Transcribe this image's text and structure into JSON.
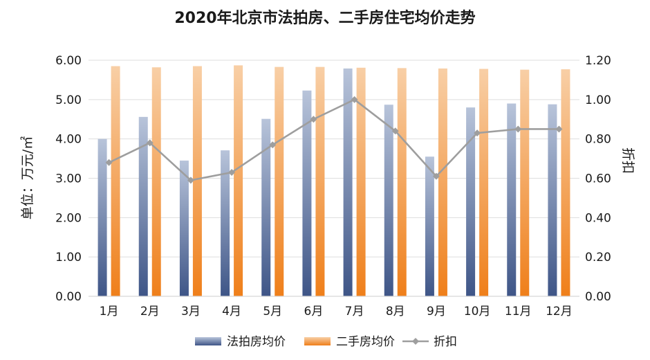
{
  "chart_data": {
    "type": "bar",
    "title": "2020年北京市法拍房、二手房住宅均价走势",
    "categories": [
      "1月",
      "2月",
      "3月",
      "4月",
      "5月",
      "6月",
      "7月",
      "8月",
      "9月",
      "10月",
      "11月",
      "12月"
    ],
    "series": [
      {
        "name": "法拍房均价",
        "type": "bar",
        "axis": "left",
        "color_top": "#b8c4da",
        "color_bottom": "#3e5587",
        "values": [
          4.0,
          4.56,
          3.45,
          3.71,
          4.51,
          5.23,
          5.79,
          4.87,
          3.55,
          4.8,
          4.9,
          4.88
        ]
      },
      {
        "name": "二手房均价",
        "type": "bar",
        "axis": "left",
        "color_top": "#f8cfa6",
        "color_bottom": "#ef7f1a",
        "values": [
          5.85,
          5.82,
          5.85,
          5.87,
          5.83,
          5.83,
          5.81,
          5.8,
          5.79,
          5.78,
          5.76,
          5.77
        ]
      },
      {
        "name": "折扣",
        "type": "line",
        "axis": "right",
        "color": "#9e9e9e",
        "marker": "diamond",
        "values": [
          0.68,
          0.78,
          0.59,
          0.63,
          0.77,
          0.9,
          1.0,
          0.84,
          0.61,
          0.83,
          0.85,
          0.85
        ]
      }
    ],
    "ylabel": "单位：万元/㎡",
    "y2label": "折扣",
    "ylim": [
      0,
      6
    ],
    "y2lim": [
      0,
      1.2
    ],
    "yticks": [
      "0.00",
      "1.00",
      "2.00",
      "3.00",
      "4.00",
      "5.00",
      "6.00"
    ],
    "y2ticks": [
      "0.00",
      "0.20",
      "0.40",
      "0.60",
      "0.80",
      "1.00",
      "1.20"
    ],
    "grid": true,
    "legend_position": "bottom"
  }
}
